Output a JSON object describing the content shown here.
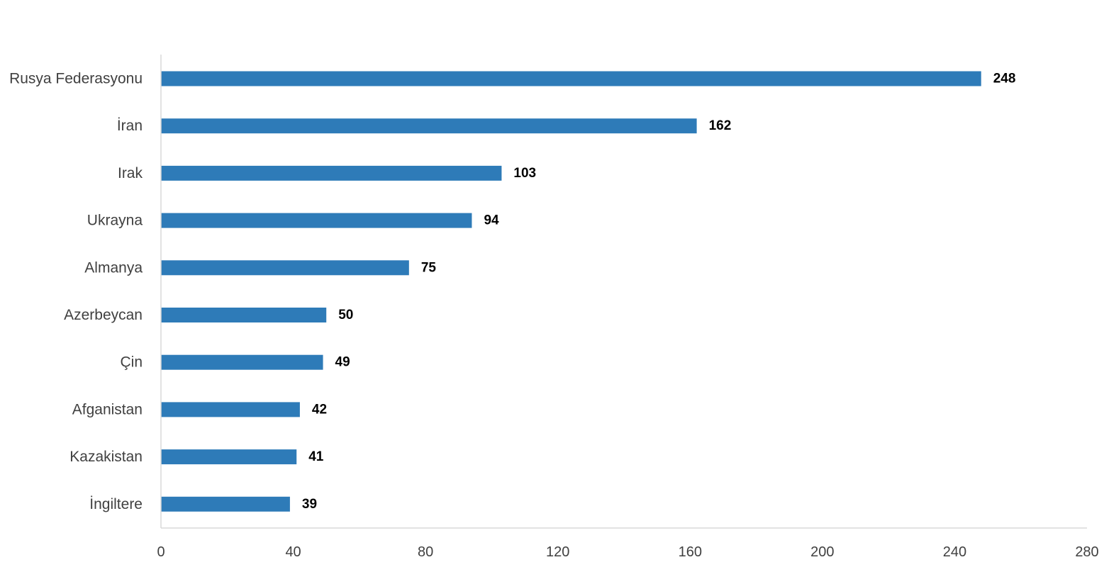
{
  "chart_data": {
    "type": "bar",
    "orientation": "horizontal",
    "categories": [
      "Rusya Federasyonu",
      "İran",
      "Irak",
      "Ukrayna",
      "Almanya",
      "Azerbeycan",
      "Çin",
      "Afganistan",
      "Kazakistan",
      "İngiltere"
    ],
    "values": [
      248,
      162,
      103,
      94,
      75,
      50,
      49,
      42,
      41,
      39
    ],
    "title": "",
    "xlabel": "",
    "ylabel": "",
    "xlim": [
      0,
      280
    ],
    "xticks": [
      0,
      40,
      80,
      120,
      160,
      200,
      240,
      280
    ],
    "tick_labels": [
      "0",
      "40",
      "80",
      "120",
      "160",
      "200",
      "240",
      "280"
    ],
    "data_labels": [
      "248",
      "162",
      "103",
      "94",
      "75",
      "50",
      "49",
      "42",
      "41",
      "39"
    ],
    "grid": false,
    "legend": "none",
    "bar_color": "#2E7BB8",
    "axis_color": "#D9D9D9"
  }
}
